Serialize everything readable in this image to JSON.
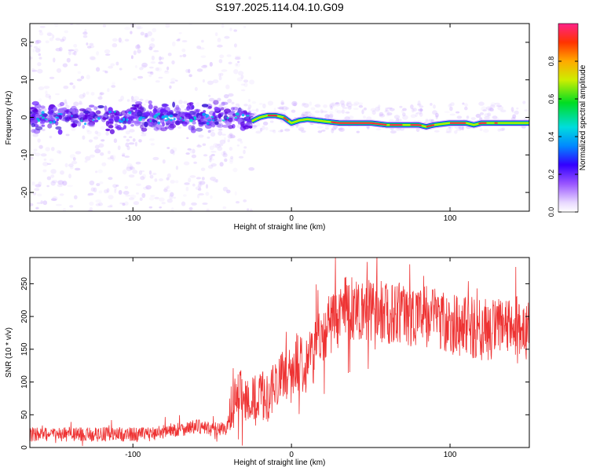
{
  "title": "S197.2025.114.04.10.G09",
  "chart_data": [
    {
      "type": "heatmap",
      "xlabel": "Height of straight line (km)",
      "ylabel": "Frequency (Hz)",
      "xlim": [
        -165,
        150
      ],
      "ylim": [
        -25,
        25
      ],
      "xticks": [
        -100,
        0,
        100
      ],
      "yticks": [
        -20,
        -10,
        0,
        10,
        20
      ],
      "colorbar": {
        "label": "Normalized spectral amplitude",
        "range": [
          0,
          1
        ],
        "ticks": [
          0.0,
          0.2,
          0.4,
          0.6,
          0.8
        ]
      },
      "ridge": {
        "x": [
          -165,
          -150,
          -130,
          -110,
          -90,
          -70,
          -50,
          -40,
          -30,
          -25,
          -20,
          -15,
          -10,
          -5,
          0,
          5,
          10,
          20,
          30,
          50,
          60,
          70,
          80,
          85,
          90,
          100,
          110,
          115,
          120,
          130,
          150
        ],
        "frequency": [
          0,
          0,
          0,
          0,
          0,
          0,
          0,
          0,
          0,
          -1,
          0,
          0.5,
          0.5,
          0,
          -1.5,
          -0.8,
          -0.5,
          -1,
          -1.5,
          -1.5,
          -2,
          -2,
          -2,
          -2.5,
          -2,
          -1.5,
          -1.5,
          -2,
          -1.5,
          -1.5,
          -1.5
        ]
      }
    },
    {
      "type": "line",
      "xlabel": "Height of straight line (km)",
      "ylabel": "SNR (10 * v/v)",
      "xlim": [
        -165,
        150
      ],
      "ylim": [
        0,
        290
      ],
      "xticks": [
        -100,
        0,
        100
      ],
      "yticks": [
        0,
        50,
        100,
        150,
        200,
        250
      ],
      "series": [
        {
          "color": "#ee3333",
          "x": [
            -165,
            -150,
            -130,
            -110,
            -90,
            -80,
            -70,
            -60,
            -50,
            -40,
            -38,
            -35,
            -30,
            -25,
            -20,
            -15,
            -10,
            -5,
            0,
            5,
            10,
            15,
            20,
            25,
            30,
            35,
            40,
            50,
            60,
            70,
            80,
            90,
            100,
            110,
            120,
            130,
            140,
            150
          ],
          "values": [
            20,
            20,
            20,
            20,
            20,
            25,
            28,
            32,
            28,
            30,
            60,
            80,
            80,
            70,
            80,
            75,
            100,
            110,
            115,
            135,
            130,
            150,
            180,
            190,
            200,
            215,
            210,
            210,
            205,
            205,
            200,
            200,
            190,
            185,
            180,
            180,
            185,
            180
          ]
        }
      ]
    }
  ]
}
